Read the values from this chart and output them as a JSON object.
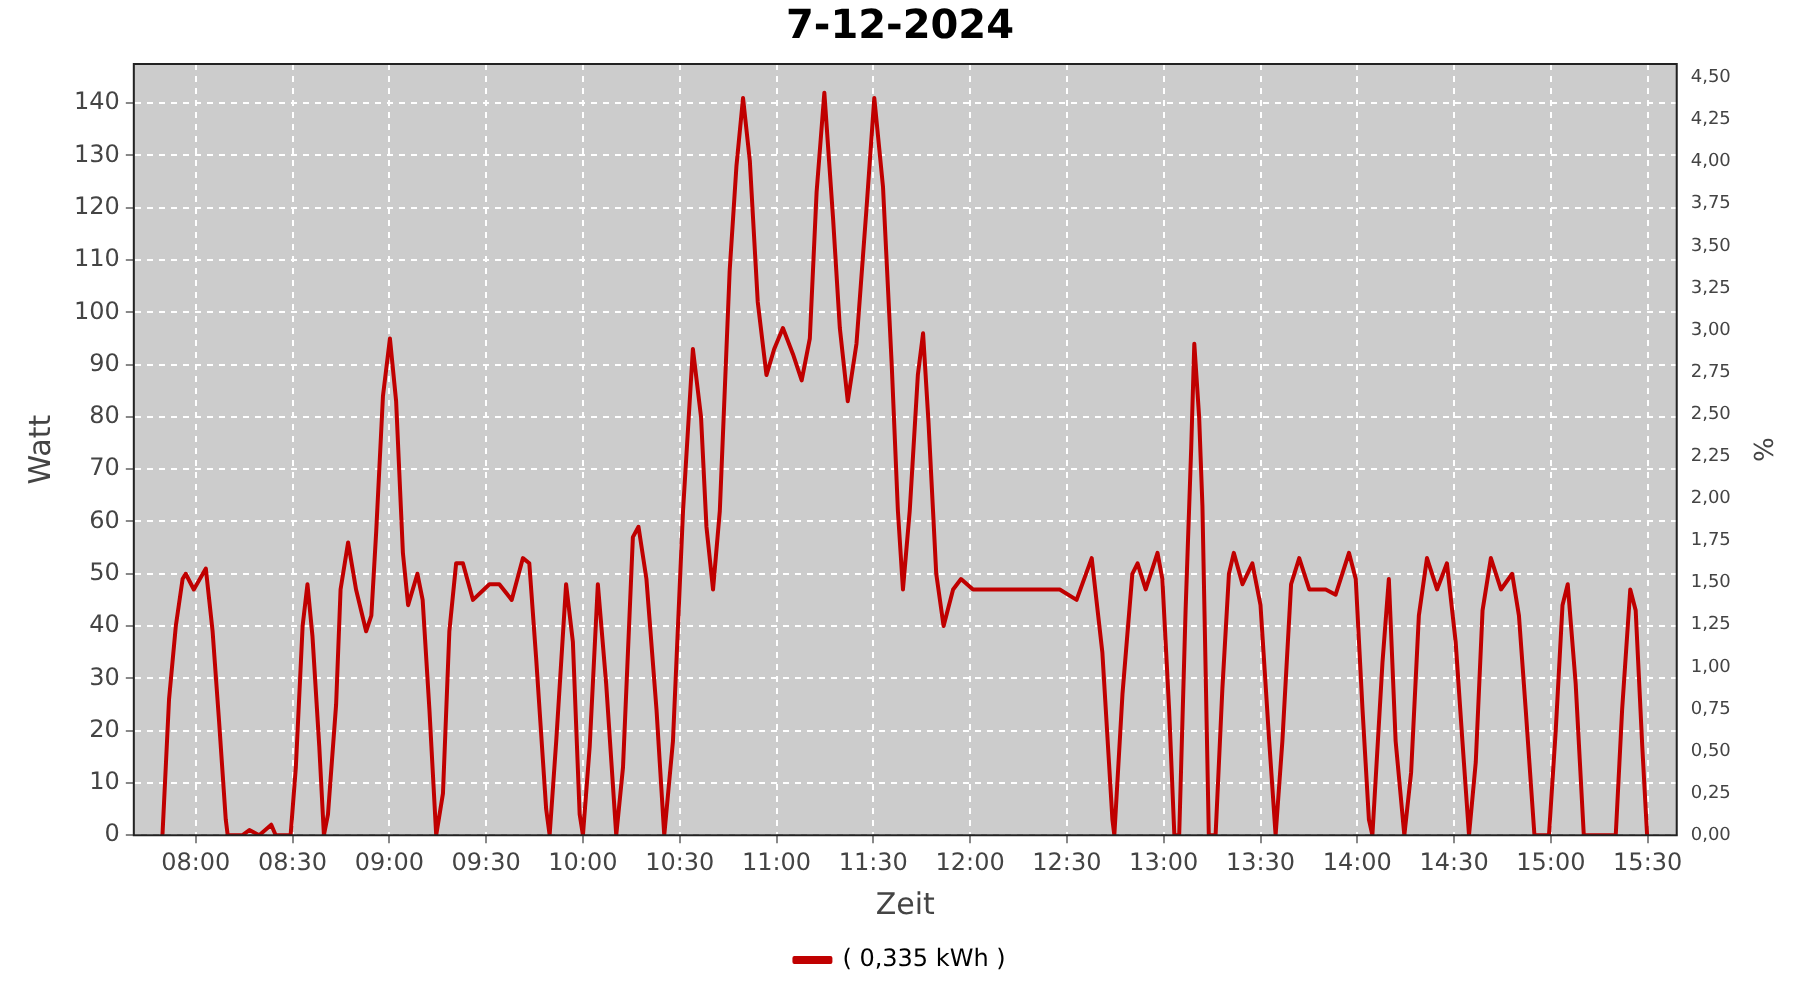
{
  "chart_data": {
    "type": "line",
    "title": "7-12-2024",
    "xlabel": "Zeit",
    "ylabel": "Watt",
    "y2label": "%",
    "xlim": [
      7.68,
      15.65
    ],
    "xticks": [
      {
        "value": 8,
        "label": "08:00"
      },
      {
        "value": 8.5,
        "label": "08:30"
      },
      {
        "value": 9,
        "label": "09:00"
      },
      {
        "value": 9.5,
        "label": "09:30"
      },
      {
        "value": 10,
        "label": "10:00"
      },
      {
        "value": 10.5,
        "label": "10:30"
      },
      {
        "value": 11,
        "label": "11:00"
      },
      {
        "value": 11.5,
        "label": "11:30"
      },
      {
        "value": 12,
        "label": "12:00"
      },
      {
        "value": 12.5,
        "label": "12:30"
      },
      {
        "value": 13,
        "label": "13:00"
      },
      {
        "value": 13.5,
        "label": "13:30"
      },
      {
        "value": 14,
        "label": "14:00"
      },
      {
        "value": 14.5,
        "label": "14:30"
      },
      {
        "value": 15,
        "label": "15:00"
      },
      {
        "value": 15.5,
        "label": "15:30"
      }
    ],
    "ylim": [
      0,
      147.5
    ],
    "yticks": [
      0,
      10,
      20,
      30,
      40,
      50,
      60,
      70,
      80,
      90,
      100,
      110,
      120,
      130,
      140
    ],
    "y2lim": [
      0,
      4.58
    ],
    "y2ticks": [
      {
        "value": 0,
        "label": "0,00"
      },
      {
        "value": 0.25,
        "label": "0,25"
      },
      {
        "value": 0.5,
        "label": "0,50"
      },
      {
        "value": 0.75,
        "label": "0,75"
      },
      {
        "value": 1,
        "label": "1,00"
      },
      {
        "value": 1.25,
        "label": "1,25"
      },
      {
        "value": 1.5,
        "label": "1,50"
      },
      {
        "value": 1.75,
        "label": "1,75"
      },
      {
        "value": 2,
        "label": "2,00"
      },
      {
        "value": 2.25,
        "label": "2,25"
      },
      {
        "value": 2.5,
        "label": "2,50"
      },
      {
        "value": 2.75,
        "label": "2,75"
      },
      {
        "value": 3,
        "label": "3,00"
      },
      {
        "value": 3.25,
        "label": "3,25"
      },
      {
        "value": 3.5,
        "label": "3,50"
      },
      {
        "value": 3.75,
        "label": "3,75"
      },
      {
        "value": 4,
        "label": "4,00"
      },
      {
        "value": 4.25,
        "label": "4,25"
      },
      {
        "value": 4.5,
        "label": "4,50"
      }
    ],
    "grid": true,
    "legend": "bottom",
    "marker": "none",
    "line_style": "solid",
    "series": [
      {
        "name": "( 0,335 kWh )",
        "color": "#c00000",
        "x": [
          7.828,
          7.862,
          7.897,
          7.932,
          7.948,
          7.99,
          8.052,
          8.087,
          8.12,
          8.155,
          8.165,
          8.242,
          8.277,
          8.328,
          8.39,
          8.413,
          8.49,
          8.517,
          8.552,
          8.577,
          8.603,
          8.638,
          8.662,
          8.683,
          8.725,
          8.748,
          8.787,
          8.828,
          8.88,
          8.907,
          8.932,
          8.967,
          9.003,
          9.035,
          9.07,
          9.097,
          9.145,
          9.172,
          9.207,
          9.242,
          9.277,
          9.31,
          9.345,
          9.38,
          9.432,
          9.517,
          9.568,
          9.632,
          9.69,
          9.723,
          9.758,
          9.81,
          9.828,
          9.862,
          9.913,
          9.948,
          9.983,
          10.0,
          10.035,
          10.077,
          10.12,
          10.172,
          10.207,
          10.258,
          10.287,
          10.328,
          10.38,
          10.42,
          10.465,
          10.517,
          10.568,
          10.61,
          10.638,
          10.672,
          10.707,
          10.758,
          10.793,
          10.827,
          10.862,
          10.903,
          10.948,
          10.988,
          11.033,
          11.085,
          11.13,
          11.172,
          11.207,
          11.247,
          11.292,
          11.327,
          11.368,
          11.413,
          11.465,
          11.505,
          11.55,
          11.595,
          11.627,
          11.653,
          11.688,
          11.73,
          11.757,
          11.785,
          11.825,
          11.863,
          11.912,
          11.953,
          12.015,
          12.463,
          12.55,
          12.628,
          12.683,
          12.735,
          12.745,
          12.787,
          12.838,
          12.865,
          12.907,
          12.968,
          12.993,
          13.028,
          13.055,
          13.08,
          13.113,
          13.142,
          13.158,
          13.183,
          13.2,
          13.233,
          13.268,
          13.303,
          13.337,
          13.362,
          13.407,
          13.458,
          13.5,
          13.545,
          13.578,
          13.613,
          13.658,
          13.7,
          13.752,
          13.837,
          13.888,
          13.957,
          13.992,
          14.027,
          14.06,
          14.078,
          14.13,
          14.163,
          14.198,
          14.243,
          14.278,
          14.318,
          14.36,
          14.412,
          14.463,
          14.508,
          14.543,
          14.577,
          14.612,
          14.647,
          14.69,
          14.742,
          14.8,
          14.835,
          14.87,
          14.915,
          14.99,
          15.025,
          15.06,
          15.087,
          15.128,
          15.17,
          15.335,
          15.368,
          15.41,
          15.438,
          15.472,
          15.497
        ],
        "values": [
          0,
          26,
          40,
          49,
          50,
          47,
          51,
          39,
          22,
          3,
          0,
          0,
          1,
          0,
          2,
          0,
          0,
          13,
          40,
          48,
          38,
          17,
          0,
          4,
          25,
          47,
          56,
          47,
          39,
          42,
          58,
          84,
          95,
          83,
          54,
          44,
          50,
          45,
          24,
          0,
          8,
          39,
          52,
          52,
          45,
          48,
          48,
          45,
          53,
          52,
          34,
          5,
          0,
          18,
          48,
          37,
          4,
          0,
          17,
          48,
          29,
          0,
          13,
          57,
          59,
          49,
          24,
          0,
          18,
          62,
          93,
          80,
          59,
          47,
          62,
          108,
          128,
          141,
          129,
          102,
          88,
          93,
          97,
          92,
          87,
          95,
          123,
          142,
          118,
          97,
          83,
          94,
          120,
          141,
          124,
          90,
          62,
          47,
          62,
          88,
          96,
          79,
          50,
          40,
          47,
          49,
          47,
          47,
          45,
          53,
          35,
          3,
          0,
          27,
          50,
          52,
          47,
          54,
          49,
          24,
          0,
          0,
          43,
          74,
          94,
          80,
          63,
          0,
          0,
          28,
          50,
          54,
          48,
          52,
          44,
          18,
          0,
          18,
          48,
          53,
          47,
          47,
          46,
          54,
          49,
          24,
          3,
          0,
          33,
          49,
          18,
          0,
          12,
          42,
          53,
          47,
          52,
          37,
          18,
          0,
          14,
          43,
          53,
          47,
          50,
          42,
          24,
          0,
          0,
          20,
          44,
          48,
          29,
          0,
          0,
          24,
          47,
          43,
          17,
          0
        ]
      }
    ]
  }
}
